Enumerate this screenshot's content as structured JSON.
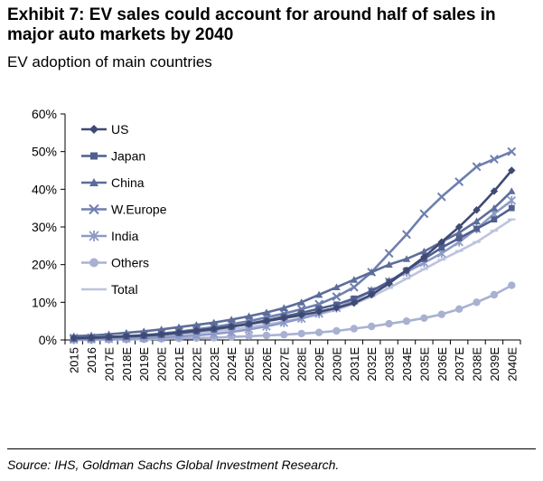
{
  "title": "Exhibit 7: EV sales could account for around half of sales in major auto markets by 2040",
  "subtitle": "EV adoption of main countries",
  "source": "Source: IHS, Goldman Sachs Global Investment Research.",
  "chart_data": {
    "type": "line",
    "title": "",
    "xlabel": "",
    "ylabel": "",
    "ylim": [
      0,
      60
    ],
    "yticks": [
      "0%",
      "10%",
      "20%",
      "30%",
      "40%",
      "50%",
      "60%"
    ],
    "grid": false,
    "legend_position": "top-left",
    "categories": [
      "2015",
      "2016",
      "2017E",
      "2018E",
      "2019E",
      "2020E",
      "2021E",
      "2022E",
      "2023E",
      "2024E",
      "2025E",
      "2026E",
      "2027E",
      "2028E",
      "2029E",
      "2030E",
      "2031E",
      "2032E",
      "2033E",
      "2034E",
      "2035E",
      "2036E",
      "2037E",
      "2038E",
      "2039E",
      "2040E"
    ],
    "series": [
      {
        "name": "US",
        "marker": "diamond",
        "color": "#3f4a74",
        "values": [
          0.5,
          0.6,
          0.8,
          1.0,
          1.2,
          1.5,
          2.0,
          2.5,
          3.0,
          3.6,
          4.2,
          5.0,
          5.8,
          6.6,
          7.5,
          8.5,
          9.8,
          12.0,
          15.0,
          18.5,
          22.0,
          26.0,
          30.0,
          34.5,
          39.5,
          45.0
        ]
      },
      {
        "name": "Japan",
        "marker": "square",
        "color": "#4f5f8f",
        "values": [
          0.4,
          0.5,
          0.7,
          0.9,
          1.1,
          1.4,
          1.8,
          2.3,
          2.8,
          3.5,
          4.3,
          5.2,
          6.2,
          7.2,
          8.3,
          9.4,
          11.0,
          13.0,
          15.5,
          18.5,
          21.5,
          24.5,
          27.0,
          29.5,
          32.0,
          35.0
        ]
      },
      {
        "name": "China",
        "marker": "triangle",
        "color": "#5d6d9a",
        "values": [
          1.0,
          1.2,
          1.5,
          1.9,
          2.3,
          2.8,
          3.4,
          4.0,
          4.6,
          5.4,
          6.3,
          7.3,
          8.5,
          10.0,
          12.0,
          14.0,
          16.0,
          18.0,
          20.0,
          21.5,
          23.5,
          26.0,
          28.5,
          31.5,
          35.0,
          39.5
        ]
      },
      {
        "name": "W.Europe",
        "marker": "x",
        "color": "#6f7fae",
        "values": [
          0.5,
          0.6,
          0.8,
          1.0,
          1.3,
          1.7,
          2.2,
          2.8,
          3.4,
          4.2,
          5.0,
          6.0,
          7.0,
          8.2,
          9.5,
          11.5,
          14.0,
          18.0,
          23.0,
          28.0,
          33.5,
          38.0,
          42.0,
          46.0,
          48.0,
          50.0
        ]
      },
      {
        "name": "India",
        "marker": "asterisk",
        "color": "#8d9ac6",
        "values": [
          0.1,
          0.2,
          0.3,
          0.4,
          0.5,
          0.7,
          0.9,
          1.2,
          1.6,
          2.1,
          2.8,
          3.6,
          4.6,
          5.7,
          7.0,
          8.5,
          10.5,
          13.0,
          15.5,
          18.0,
          20.5,
          23.0,
          26.0,
          29.5,
          33.5,
          37.0
        ]
      },
      {
        "name": "Others",
        "marker": "circle",
        "color": "#a9b1d2",
        "values": [
          0.0,
          0.0,
          0.1,
          0.1,
          0.2,
          0.3,
          0.4,
          0.5,
          0.6,
          0.8,
          1.0,
          1.2,
          1.4,
          1.7,
          2.0,
          2.4,
          3.0,
          3.6,
          4.3,
          5.0,
          5.8,
          6.8,
          8.2,
          10.0,
          12.0,
          14.5
        ]
      },
      {
        "name": "Total",
        "marker": "dash",
        "color": "#bcc3df",
        "values": [
          0.3,
          0.4,
          0.5,
          0.7,
          0.9,
          1.1,
          1.4,
          1.8,
          2.3,
          2.8,
          3.4,
          4.1,
          4.9,
          5.8,
          6.8,
          8.0,
          9.6,
          11.5,
          13.8,
          16.3,
          18.8,
          21.3,
          23.6,
          26.0,
          29.0,
          32.0
        ]
      }
    ]
  }
}
